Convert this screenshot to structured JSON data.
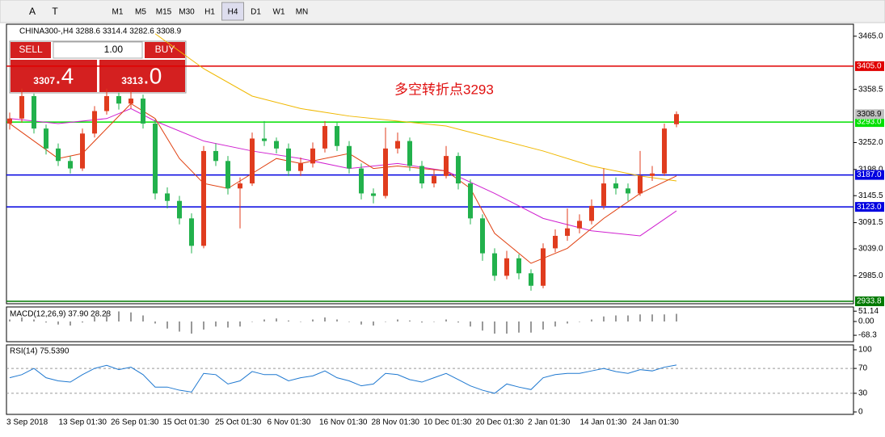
{
  "toolbar": {
    "timeframes": [
      "M1",
      "M5",
      "M15",
      "M30",
      "H1",
      "H4",
      "D1",
      "W1",
      "MN"
    ],
    "active": "H4",
    "tools": [
      "A",
      "T"
    ]
  },
  "trade_panel": {
    "sell": "SELL",
    "buy": "BUY",
    "lot": "1.00",
    "sell_small": "3307",
    "sell_big": ".4",
    "buy_small": "3313",
    "buy_big": ".0"
  },
  "chart_data": {
    "type": "candlestick",
    "header": "CHINA300-,H4  3288.6 3314.4 3282.6 3308.9",
    "annotation": "多空转折点3293",
    "up_color": "#e03c1e",
    "down_color": "#22b14c",
    "open": [
      3290,
      3300,
      3345,
      3280,
      3240,
      3215,
      3200,
      3270,
      3315,
      3345,
      3330,
      3340,
      3290,
      3150,
      3135,
      3100,
      3045,
      3235,
      3215,
      3160,
      3170,
      3260,
      3255,
      3240,
      3195,
      3210,
      3240,
      3285,
      3245,
      3200,
      3150,
      3145,
      3240,
      3255,
      3205,
      3170,
      3185,
      3225,
      3170,
      3100,
      3030,
      2985,
      3020,
      2990,
      2965,
      3040,
      3065,
      3080,
      3095,
      3125,
      3170,
      3160,
      3150,
      3185,
      3190,
      3288.6
    ],
    "high": [
      3312,
      3360,
      3350,
      3288,
      3250,
      3225,
      3280,
      3325,
      3360,
      3352,
      3355,
      3348,
      3298,
      3162,
      3145,
      3110,
      3245,
      3250,
      3225,
      3182,
      3272,
      3295,
      3262,
      3250,
      3222,
      3252,
      3295,
      3292,
      3255,
      3210,
      3160,
      3282,
      3272,
      3262,
      3215,
      3198,
      3245,
      3232,
      3178,
      3108,
      3040,
      3035,
      3028,
      2998,
      3050,
      3078,
      3120,
      3108,
      3138,
      3200,
      3182,
      3170,
      3235,
      3205,
      3290,
      3314.4
    ],
    "low": [
      3278,
      3292,
      3270,
      3228,
      3205,
      3190,
      3195,
      3262,
      3308,
      3318,
      3320,
      3280,
      3138,
      3120,
      3088,
      3030,
      3040,
      3205,
      3148,
      3080,
      3165,
      3245,
      3230,
      3185,
      3185,
      3202,
      3232,
      3235,
      3190,
      3138,
      3130,
      3140,
      3230,
      3195,
      3160,
      3162,
      3180,
      3158,
      3088,
      3015,
      2975,
      2978,
      2978,
      2955,
      2960,
      3032,
      3055,
      3070,
      3088,
      3118,
      3148,
      3135,
      3145,
      3175,
      3185,
      3282.6
    ],
    "close": [
      3300,
      3345,
      3280,
      3240,
      3215,
      3200,
      3270,
      3315,
      3345,
      3330,
      3340,
      3290,
      3150,
      3135,
      3100,
      3045,
      3235,
      3215,
      3160,
      3170,
      3260,
      3255,
      3240,
      3195,
      3210,
      3240,
      3285,
      3245,
      3200,
      3150,
      3145,
      3240,
      3255,
      3205,
      3170,
      3185,
      3225,
      3170,
      3100,
      3030,
      2985,
      3020,
      2990,
      2965,
      3040,
      3065,
      3080,
      3095,
      3125,
      3170,
      3160,
      3150,
      3185,
      3190,
      3280,
      3308.9
    ],
    "ylim": [
      2929,
      3489
    ],
    "yticks": [
      {
        "value": 3465,
        "label": "3465.0"
      },
      {
        "value": 3358.5,
        "label": "3358.5"
      },
      {
        "value": 3252,
        "label": "3252.0"
      },
      {
        "value": 3198,
        "label": "3198.0"
      },
      {
        "value": 3145.5,
        "label": "3145.5"
      },
      {
        "value": 3091.5,
        "label": "3091.5"
      },
      {
        "value": 3039,
        "label": "3039.0"
      },
      {
        "value": 2985,
        "label": "2985.0"
      }
    ],
    "current_price": {
      "value": 3308.9,
      "label": "3308.9"
    },
    "levels": [
      {
        "value": 3405,
        "label": "3405.0",
        "color": "#e00000"
      },
      {
        "value": 3293,
        "label": "3293.0",
        "color": "#00e000"
      },
      {
        "value": 3187,
        "label": "3187.0",
        "color": "#0000e0"
      },
      {
        "value": 3123,
        "label": "3123.0",
        "color": "#0000e0"
      },
      {
        "value": 2933.8,
        "label": "2933.8",
        "color": "#007a00"
      }
    ],
    "moving_averages": [
      {
        "color": "#f0b800",
        "x": [
          12,
          16,
          20,
          24,
          28,
          32,
          36,
          40,
          44,
          48,
          52,
          55
        ],
        "values": [
          3470,
          3400,
          3345,
          3320,
          3305,
          3295,
          3285,
          3260,
          3235,
          3205,
          3185,
          3175
        ]
      },
      {
        "color": "#d020d0",
        "x": [
          0,
          4,
          8,
          10,
          12,
          16,
          20,
          24,
          28,
          32,
          36,
          40,
          44,
          48,
          52,
          55
        ],
        "values": [
          3300,
          3290,
          3300,
          3320,
          3295,
          3255,
          3235,
          3220,
          3200,
          3210,
          3195,
          3150,
          3100,
          3075,
          3065,
          3115
        ]
      },
      {
        "color": "#e04010",
        "x": [
          0,
          4,
          6,
          8,
          10,
          12,
          14,
          16,
          18,
          20,
          22,
          24,
          28,
          30,
          32,
          36,
          38,
          40,
          43,
          46,
          49,
          52,
          55
        ],
        "values": [
          3290,
          3220,
          3230,
          3280,
          3330,
          3300,
          3220,
          3170,
          3160,
          3190,
          3220,
          3210,
          3230,
          3200,
          3205,
          3195,
          3160,
          3070,
          3010,
          3040,
          3100,
          3150,
          3185
        ]
      }
    ],
    "x_axis_labels": [
      "3 Sep 2018",
      "13 Sep 01:30",
      "26 Sep 01:30",
      "15 Oct 01:30",
      "25 Oct 01:30",
      "6 Nov 01:30",
      "16 Nov 01:30",
      "28 Nov 01:30",
      "10 Dec 01:30",
      "20 Dec 01:30",
      "2 Jan 01:30",
      "14 Jan 01:30",
      "24 Jan 01:30"
    ],
    "macd": {
      "title": "MACD(12,26,9) 37.90 28.28",
      "ylim": [
        -100,
        72
      ],
      "yticks": [
        {
          "value": 51.14,
          "label": "51.14"
        },
        {
          "value": 0,
          "label": "0.00"
        },
        {
          "value": -68.3,
          "label": "-68.3"
        }
      ],
      "values": [
        10,
        20,
        10,
        -5,
        -15,
        -20,
        -5,
        25,
        45,
        50,
        45,
        30,
        -10,
        -35,
        -50,
        -60,
        -40,
        -25,
        -30,
        -25,
        0,
        10,
        15,
        5,
        0,
        10,
        20,
        10,
        0,
        -15,
        -20,
        0,
        10,
        5,
        -5,
        0,
        10,
        -5,
        -25,
        -45,
        -60,
        -60,
        -55,
        -55,
        -40,
        -25,
        -10,
        0,
        10,
        25,
        30,
        30,
        35,
        35,
        35,
        37.9
      ]
    },
    "rsi": {
      "title": "RSI(14) 75.5390",
      "color": "#1e78d0",
      "ylim": [
        0,
        100
      ],
      "yticks": [
        100,
        70,
        30,
        0
      ],
      "levels": [
        70,
        30
      ],
      "values": [
        55,
        60,
        70,
        55,
        50,
        48,
        60,
        70,
        75,
        68,
        72,
        60,
        40,
        40,
        35,
        32,
        62,
        60,
        45,
        50,
        65,
        60,
        60,
        50,
        55,
        58,
        66,
        55,
        50,
        42,
        45,
        62,
        60,
        52,
        48,
        55,
        62,
        52,
        42,
        35,
        30,
        45,
        40,
        36,
        55,
        60,
        62,
        62,
        66,
        70,
        65,
        62,
        68,
        66,
        72,
        75.539
      ]
    }
  }
}
